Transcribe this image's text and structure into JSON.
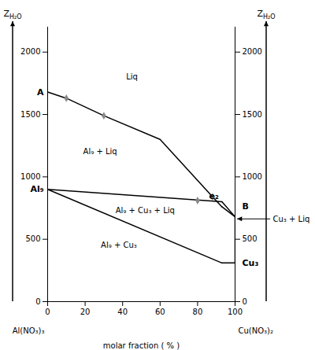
{
  "chart_data": {
    "type": "line",
    "xlabel": "molar fraction ( % )",
    "ylabel": "ZH₂O",
    "y2label": "ZH₂O",
    "xlim": [
      0,
      100
    ],
    "ylim": [
      0,
      2200
    ],
    "xticks": [
      0,
      20,
      40,
      60,
      80,
      100
    ],
    "yticks": [
      0,
      500,
      1000,
      1500,
      2000
    ],
    "y2lim": [
      0,
      2200
    ],
    "y2ticks": [
      0,
      500,
      1000,
      1500,
      2000
    ],
    "series": [
      {
        "x": [
          0,
          10,
          30,
          60,
          88,
          93
        ],
        "y": [
          1680,
          1630,
          1490,
          1300,
          840,
          760
        ],
        "color": "#000000"
      },
      {
        "x": [
          0,
          93
        ],
        "y": [
          900,
          800
        ],
        "color": "#000000"
      },
      {
        "x": [
          0,
          93
        ],
        "y": [
          900,
          310
        ],
        "color": "#000000"
      },
      {
        "x": [
          93,
          100
        ],
        "y": [
          760,
          680
        ],
        "color": "#000000"
      },
      {
        "x": [
          93,
          100
        ],
        "y": [
          800,
          680
        ],
        "color": "#000000"
      },
      {
        "x": [
          93,
          100
        ],
        "y": [
          310,
          310
        ],
        "color": "#000000"
      },
      {
        "x": [
          100,
          100
        ],
        "y": [
          310,
          680
        ],
        "color": "#000000"
      },
      {
        "type": "scatter",
        "x": [
          10,
          30,
          80,
          88
        ],
        "y": [
          1630,
          1490,
          810,
          840
        ],
        "color": "#888888",
        "marker": "diamond"
      }
    ],
    "annotations": [
      {
        "text": "Liq",
        "x": 45,
        "y": 1800
      },
      {
        "text": "Al₉ + Liq",
        "x": 28,
        "y": 1200
      },
      {
        "text": "Al₉ + Cu₃ + Liq",
        "x": 52,
        "y": 730
      },
      {
        "text": "Al₉ + Cu₃",
        "x": 38,
        "y": 450
      }
    ],
    "point_labels": [
      {
        "text": "A",
        "x": 0,
        "y": 1680,
        "side": "left"
      },
      {
        "text": "Al₉",
        "x": 0,
        "y": 900,
        "side": "left"
      },
      {
        "text": "e₂",
        "x": 93,
        "y": 800,
        "side": "above-left"
      },
      {
        "text": "B",
        "x": 100,
        "y": 760,
        "side": "right"
      },
      {
        "text": "Cu₃",
        "x": 100,
        "y": 310,
        "side": "right"
      }
    ],
    "callouts": [
      {
        "text": "Cu₃ + Liq",
        "x": 100,
        "y": 660
      }
    ],
    "corner_labels": [
      {
        "text": "Al(NO₃)₃",
        "x": 0,
        "side": "left"
      },
      {
        "text": "Cu(NO₃)₂",
        "x": 100,
        "side": "right"
      }
    ]
  }
}
